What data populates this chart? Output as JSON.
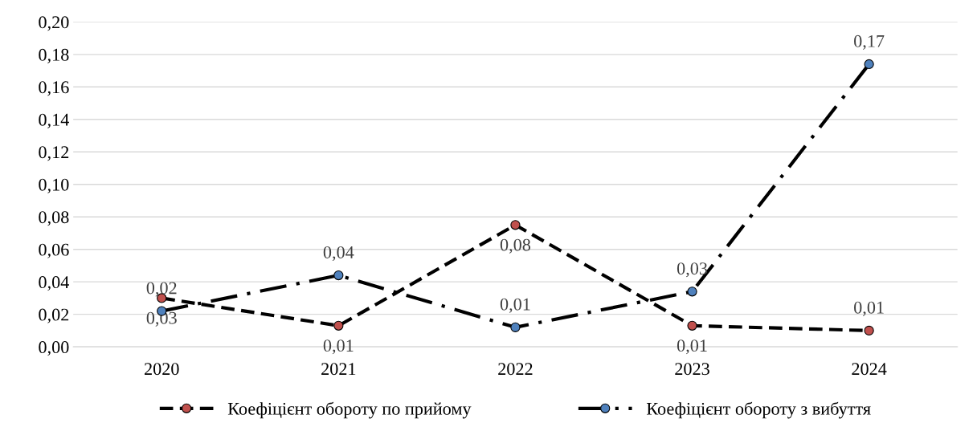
{
  "chart_data": {
    "type": "line",
    "categories": [
      "2020",
      "2021",
      "2022",
      "2023",
      "2024"
    ],
    "series": [
      {
        "name": "Коефіцієнт обороту по прийому",
        "color": "#c0504d",
        "line_style": "dashed",
        "values": [
          0.03,
          0.013,
          0.075,
          0.013,
          0.01
        ],
        "value_labels": [
          "0,03",
          "0,01",
          "0,08",
          "0,01",
          "0,01"
        ]
      },
      {
        "name": "Коефіцієнт обороту з вибуття",
        "color": "#4f81bd",
        "line_style": "dashdot",
        "values": [
          0.022,
          0.044,
          0.012,
          0.034,
          0.174
        ],
        "value_labels": [
          "0,02",
          "0,04",
          "0,01",
          "0,03",
          "0,17"
        ]
      }
    ],
    "ylim": [
      0,
      0.2
    ],
    "yticks": [
      {
        "value": 0,
        "label": "0,00"
      },
      {
        "value": 0.02,
        "label": "0,02"
      },
      {
        "value": 0.04,
        "label": "0,04"
      },
      {
        "value": 0.06,
        "label": "0,06"
      },
      {
        "value": 0.08,
        "label": "0,08"
      },
      {
        "value": 0.1,
        "label": "0,10"
      },
      {
        "value": 0.12,
        "label": "0,12"
      },
      {
        "value": 0.14,
        "label": "0,14"
      },
      {
        "value": 0.16,
        "label": "0,16"
      },
      {
        "value": 0.18,
        "label": "0,18"
      },
      {
        "value": 0.2,
        "label": "0,20"
      }
    ],
    "grid": "y",
    "legend": "bottom",
    "marker": "circle"
  }
}
